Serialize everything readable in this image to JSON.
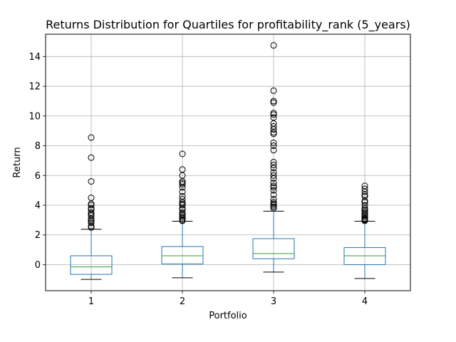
{
  "chart_data": {
    "type": "box",
    "title": "Returns Distribution for Quartiles for profitability_rank (5_years)",
    "xlabel": "Portfolio",
    "ylabel": "Return",
    "categories": [
      "1",
      "2",
      "3",
      "4"
    ],
    "ylim": [
      -1.75,
      15.5
    ],
    "yticks": [
      0,
      2,
      4,
      6,
      8,
      10,
      12,
      14
    ],
    "grid": true,
    "colors": {
      "box": "#1f77b4",
      "median": "#2ca02c",
      "whisker": "#1f77b4",
      "cap": "#000000",
      "grid": "#b0b0b0",
      "outlier": "#000000"
    },
    "boxes": [
      {
        "category": "1",
        "whisker_low": -0.99,
        "q1": -0.65,
        "median": -0.15,
        "q3": 0.6,
        "whisker_high": 2.38,
        "outliers": [
          2.5,
          2.6,
          2.8,
          2.9,
          3.0,
          3.1,
          3.3,
          3.4,
          3.5,
          3.7,
          3.8,
          4.0,
          4.1,
          4.5,
          5.6,
          7.2,
          8.55
        ]
      },
      {
        "category": "2",
        "whisker_low": -0.88,
        "q1": 0.05,
        "median": 0.6,
        "q3": 1.22,
        "whisker_high": 2.92,
        "outliers": [
          2.95,
          3.0,
          3.1,
          3.2,
          3.3,
          3.4,
          3.5,
          3.7,
          3.8,
          4.0,
          4.1,
          4.2,
          4.4,
          4.6,
          4.9,
          5.2,
          5.4,
          5.5,
          5.6,
          6.0,
          6.4,
          7.45
        ]
      },
      {
        "category": "3",
        "whisker_low": -0.5,
        "q1": 0.4,
        "median": 0.75,
        "q3": 1.75,
        "whisker_high": 3.6,
        "outliers": [
          3.8,
          3.9,
          4.0,
          4.1,
          4.2,
          4.4,
          4.7,
          5.0,
          5.2,
          5.3,
          5.5,
          5.8,
          6.0,
          6.2,
          6.5,
          6.7,
          6.9,
          7.7,
          8.0,
          8.2,
          8.8,
          8.9,
          9.1,
          9.3,
          9.5,
          9.9,
          10.1,
          10.2,
          10.9,
          11.0,
          11.7,
          14.75
        ]
      },
      {
        "category": "4",
        "whisker_low": -0.93,
        "q1": 0.0,
        "median": 0.6,
        "q3": 1.15,
        "whisker_high": 2.92,
        "outliers": [
          2.95,
          3.0,
          3.05,
          3.1,
          3.2,
          3.3,
          3.4,
          3.5,
          3.6,
          3.7,
          3.8,
          4.0,
          4.2,
          4.3,
          4.6,
          4.7,
          4.9,
          5.1,
          5.3
        ]
      }
    ]
  }
}
